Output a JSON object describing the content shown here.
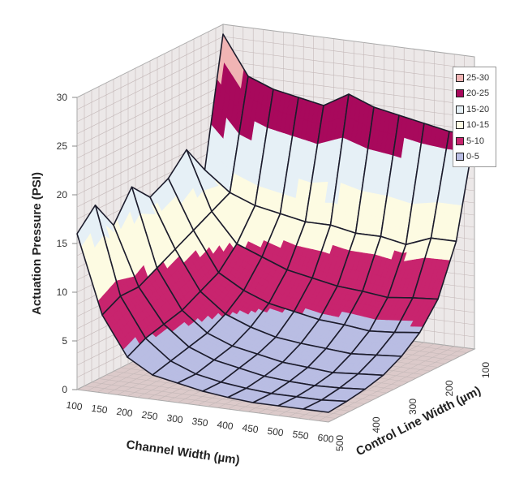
{
  "chart_data": {
    "type": "surface",
    "title": "",
    "xlabel": "Channel Width (µm)",
    "ylabel": "Control Line Width (µm)",
    "zlabel": "Actuation Pressure (PSI)",
    "zlim": [
      0,
      30
    ],
    "z_ticks": [
      "0",
      "5",
      "10",
      "15",
      "20",
      "25",
      "30"
    ],
    "x_ticks": [
      "100",
      "150",
      "200",
      "250",
      "300",
      "350",
      "400",
      "450",
      "500",
      "550",
      "600"
    ],
    "y_ticks": [
      "500",
      "400",
      "300",
      "200",
      "100"
    ],
    "grid": true,
    "legend_position": "top-right",
    "channel_width": [
      100,
      150,
      200,
      250,
      300,
      350,
      400,
      450,
      500,
      550,
      600
    ],
    "control_line_width": [
      500,
      450,
      400,
      350,
      300,
      250,
      200,
      150,
      100
    ],
    "z": [
      [
        16,
        8,
        4,
        2.5,
        2,
        1.5,
        1.2,
        1,
        1,
        1,
        1
      ],
      [
        18,
        9,
        5,
        3,
        2,
        1.5,
        1.2,
        1,
        1,
        1,
        1.2
      ],
      [
        15,
        9,
        5.5,
        3.5,
        2.5,
        2,
        1.5,
        1.3,
        1.2,
        1.3,
        1.5
      ],
      [
        18,
        10,
        6,
        4,
        3,
        2.5,
        2,
        1.8,
        1.6,
        1.8,
        2
      ],
      [
        16,
        11,
        7,
        5,
        4,
        3.3,
        3,
        2.8,
        2.6,
        2.8,
        3
      ],
      [
        17,
        12,
        8,
        6.5,
        5.5,
        5,
        4.5,
        4.3,
        4,
        4.2,
        4.5
      ],
      [
        19,
        13,
        10,
        9,
        8,
        7.5,
        7,
        6.8,
        6.5,
        6.8,
        7
      ],
      [
        16,
        14,
        13,
        12.5,
        12,
        12,
        11.5,
        11.5,
        11,
        12,
        12
      ],
      [
        29,
        25,
        24,
        23.5,
        23,
        24.5,
        23.5,
        23,
        22.5,
        22,
        22
      ]
    ],
    "legend": [
      {
        "label": "25-30",
        "min": 25,
        "max": 30,
        "color": "#f0b4b4"
      },
      {
        "label": "20-25",
        "min": 20,
        "max": 25,
        "color": "#a8095c"
      },
      {
        "label": "15-20",
        "min": 15,
        "max": 20,
        "color": "#e6f0f6"
      },
      {
        "label": "10-15",
        "min": 10,
        "max": 15,
        "color": "#fdfbe2"
      },
      {
        "label": "5-10",
        "min": 5,
        "max": 10,
        "color": "#c8246e"
      },
      {
        "label": "0-5",
        "min": 0,
        "max": 5,
        "color": "#b9bde3"
      }
    ]
  }
}
